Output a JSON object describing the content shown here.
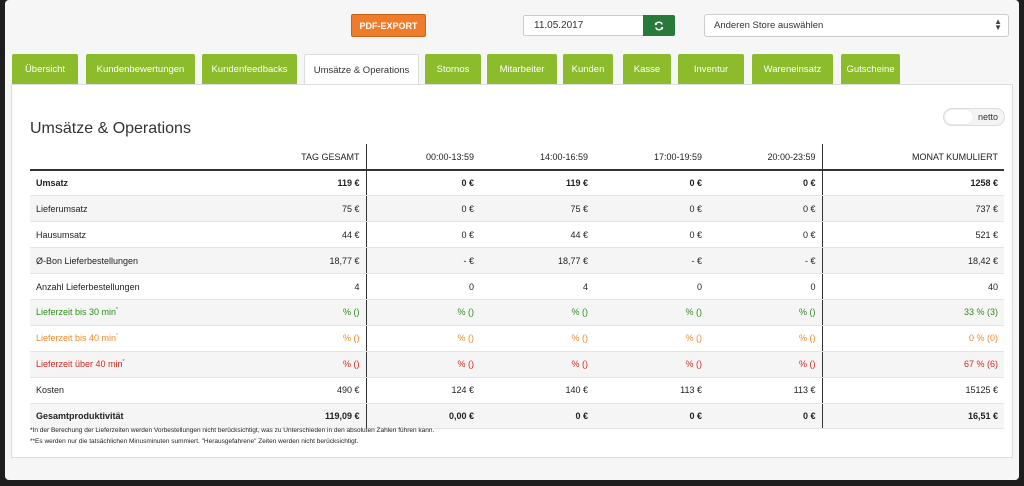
{
  "toolbar": {
    "pdf_label": "PDF-EXPORT",
    "date_value": "11.05.2017",
    "refresh_icon": "refresh-icon",
    "store_select": "Anderen Store auswählen"
  },
  "tabs": [
    {
      "label": "Übersicht"
    },
    {
      "label": "Kundenbewertungen"
    },
    {
      "label": "Kundenfeedbacks"
    },
    {
      "label": "Umsätze & Operations"
    },
    {
      "label": "Stornos"
    },
    {
      "label": "Mitarbeiter"
    },
    {
      "label": "Kunden"
    },
    {
      "label": "Kasse"
    },
    {
      "label": "Inventur"
    },
    {
      "label": "Wareneinsatz"
    },
    {
      "label": "Gutscheine"
    }
  ],
  "active_tab": "Umsätze & Operations",
  "toggle_label": "netto",
  "heading": "Umsätze & Operations",
  "colors": {
    "tab_green": "#8cbb2c",
    "pdf_orange": "#ef7c2a",
    "refresh_green": "#287a3a",
    "green_text": "#2f8c1f",
    "orange_text": "#ef8a2e",
    "red_text": "#d8281f"
  },
  "table": {
    "headers": [
      "",
      "TAG GESAMT",
      "00:00-13:59",
      "14:00-16:59",
      "17:00-19:59",
      "20:00-23:59",
      "MONAT KUMULIERT"
    ],
    "rows": [
      {
        "label": "Umsatz",
        "cells": [
          "119 €",
          "0 €",
          "119 €",
          "0 €",
          "0 €",
          "1258 €"
        ]
      },
      {
        "label": "Lieferumsatz",
        "cells": [
          "75 €",
          "0 €",
          "75 €",
          "0 €",
          "0 €",
          "737 €"
        ]
      },
      {
        "label": "Hausumsatz",
        "cells": [
          "44 €",
          "0 €",
          "44 €",
          "0 €",
          "0 €",
          "521 €"
        ]
      },
      {
        "label": "Ø-Bon Lieferbestellungen",
        "cells": [
          "18,77 €",
          "- €",
          "18,77 €",
          "- €",
          "- €",
          "18,42 €"
        ]
      },
      {
        "label": "Anzahl Lieferbestellungen",
        "cells": [
          "4",
          "0",
          "4",
          "0",
          "0",
          "40"
        ]
      },
      {
        "label": "Lieferzeit bis 30 min",
        "sup": "*",
        "cells": [
          "% ()",
          "% ()",
          "% ()",
          "% ()",
          "% ()",
          "33 % (3)"
        ]
      },
      {
        "label": "Lieferzeit bis 40 min",
        "sup": "*",
        "cells": [
          "% ()",
          "% ()",
          "% ()",
          "% ()",
          "% ()",
          "0 % (0)"
        ]
      },
      {
        "label": "Lieferzeit über 40 min",
        "sup": "*",
        "cells": [
          "% ()",
          "% ()",
          "% ()",
          "% ()",
          "% ()",
          "67 % (6)"
        ]
      },
      {
        "label": "Kosten",
        "cells": [
          "490 €",
          "124 €",
          "140 €",
          "113 €",
          "113 €",
          "15125 €"
        ]
      },
      {
        "label": "Gesamtproduktivität",
        "cells": [
          "119,09 €",
          "0,00 €",
          "0 €",
          "0 €",
          "0 €",
          "16,51 €"
        ]
      }
    ]
  },
  "footnotes": [
    "*In der Berechung der Lieferzeiten werden Vorbestellungen nicht berücksichtigt, was zu Unterschieden in den absoluten Zahlen führen kann.",
    "**Es werden nur die tatsächlichen Minusminuten summiert. \"Herausgefahrene\" Zeiten werden nicht berücksichtigt."
  ]
}
